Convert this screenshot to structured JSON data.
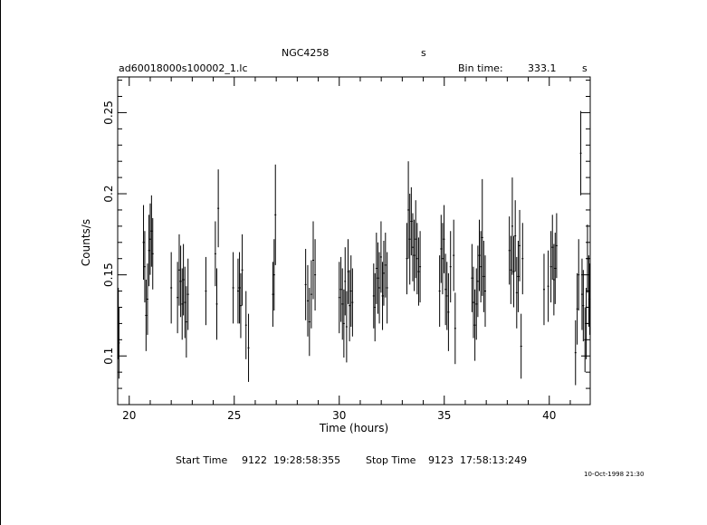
{
  "header": {
    "object": "NGC4258",
    "unit_mark": "s",
    "filename": "ad60018000s100002_1.lc",
    "bin_label": "Bin time:",
    "bin_value": "333.1",
    "bin_unit": "s"
  },
  "footer": {
    "start_label": "Start Time",
    "start_value": "9122  19:28:58:355",
    "stop_label": "Stop Time",
    "stop_value": "9123  17:58:13:249",
    "timestamp": "10-Oct-1998 21:30"
  },
  "chart_data": {
    "type": "scatter",
    "xlabel": "Time (hours)",
    "ylabel": "Counts/s",
    "xlim": [
      19.45,
      41.95
    ],
    "ylim": [
      0.07,
      0.272
    ],
    "xticks": [
      20,
      25,
      30,
      35,
      40
    ],
    "yticks": [
      0.1,
      0.15,
      0.2,
      0.25
    ],
    "ytick_labels": [
      "0.1",
      "0.15",
      "0.2",
      "0.25"
    ],
    "grid": false,
    "error_bars": true,
    "series": [
      {
        "x": [
          19.48,
          19.51,
          20.68,
          20.74,
          20.8,
          20.87,
          20.94,
          21.0,
          21.06,
          21.12,
          22.0,
          22.3,
          22.38,
          22.45,
          22.52,
          22.58,
          22.65,
          22.72,
          22.8,
          23.65,
          24.1,
          24.17,
          24.24,
          24.95,
          25.18,
          25.25,
          25.31,
          25.38,
          25.56,
          25.68,
          26.84,
          26.9,
          26.96,
          28.4,
          28.5,
          28.58,
          28.67,
          28.76,
          28.85,
          30.0,
          30.08,
          30.15,
          30.22,
          30.28,
          30.35,
          30.42,
          30.49,
          30.56,
          30.63,
          31.64,
          31.7,
          31.77,
          31.84,
          31.91,
          31.99,
          32.06,
          32.12,
          32.2,
          32.28,
          33.22,
          33.29,
          33.36,
          33.43,
          33.5,
          33.57,
          33.64,
          33.71,
          33.78,
          33.85,
          34.78,
          34.85,
          34.92,
          34.99,
          35.06,
          35.13,
          35.2,
          35.3,
          35.45,
          35.52,
          36.32,
          36.39,
          36.46,
          36.53,
          36.6,
          36.67,
          36.74,
          36.81,
          36.88,
          36.95,
          38.1,
          38.17,
          38.24,
          38.31,
          38.38,
          38.45,
          38.52,
          38.59,
          38.66,
          38.73,
          39.75,
          39.95,
          40.08,
          40.15,
          40.22,
          40.28,
          40.35,
          41.25,
          41.33,
          41.4,
          41.5,
          41.56,
          41.62,
          41.7,
          41.76,
          41.82,
          41.88,
          41.93
        ],
        "y": [
          0.12,
          0.108,
          0.17,
          0.155,
          0.125,
          0.135,
          0.165,
          0.172,
          0.177,
          0.163,
          0.142,
          0.136,
          0.153,
          0.146,
          0.132,
          0.147,
          0.133,
          0.121,
          0.138,
          0.14,
          0.163,
          0.132,
          0.191,
          0.142,
          0.14,
          0.142,
          0.131,
          0.153,
          0.119,
          0.105,
          0.138,
          0.15,
          0.187,
          0.144,
          0.134,
          0.121,
          0.138,
          0.159,
          0.15,
          0.136,
          0.141,
          0.132,
          0.12,
          0.146,
          0.118,
          0.152,
          0.131,
          0.14,
          0.133,
          0.137,
          0.13,
          0.154,
          0.148,
          0.142,
          0.161,
          0.137,
          0.151,
          0.156,
          0.142,
          0.16,
          0.19,
          0.172,
          0.183,
          0.167,
          0.162,
          0.172,
          0.16,
          0.152,
          0.155,
          0.14,
          0.166,
          0.16,
          0.172,
          0.141,
          0.137,
          0.127,
          0.155,
          0.162,
          0.117,
          0.148,
          0.133,
          0.119,
          0.132,
          0.146,
          0.162,
          0.155,
          0.173,
          0.149,
          0.14,
          0.165,
          0.153,
          0.18,
          0.152,
          0.174,
          0.139,
          0.149,
          0.168,
          0.106,
          0.16,
          0.141,
          0.143,
          0.155,
          0.167,
          0.147,
          0.154,
          0.168,
          0.102,
          0.129,
          0.15,
          0.225,
          0.138,
          0.131,
          0.11,
          0.12,
          0.16,
          0.14,
          0.135
        ],
        "err": [
          0.022,
          0.022,
          0.023,
          0.022,
          0.022,
          0.022,
          0.022,
          0.022,
          0.022,
          0.022,
          0.022,
          0.022,
          0.022,
          0.022,
          0.022,
          0.022,
          0.022,
          0.022,
          0.022,
          0.021,
          0.02,
          0.022,
          0.024,
          0.022,
          0.02,
          0.022,
          0.02,
          0.022,
          0.021,
          0.021,
          0.02,
          0.022,
          0.031,
          0.022,
          0.022,
          0.021,
          0.021,
          0.024,
          0.022,
          0.022,
          0.02,
          0.022,
          0.021,
          0.021,
          0.022,
          0.02,
          0.022,
          0.022,
          0.021,
          0.02,
          0.021,
          0.022,
          0.022,
          0.022,
          0.022,
          0.021,
          0.02,
          0.02,
          0.022,
          0.022,
          0.03,
          0.028,
          0.021,
          0.021,
          0.022,
          0.024,
          0.022,
          0.021,
          0.022,
          0.022,
          0.021,
          0.022,
          0.021,
          0.022,
          0.021,
          0.024,
          0.022,
          0.022,
          0.022,
          0.021,
          0.022,
          0.022,
          0.022,
          0.022,
          0.022,
          0.022,
          0.036,
          0.022,
          0.022,
          0.021,
          0.021,
          0.03,
          0.022,
          0.022,
          0.022,
          0.022,
          0.022,
          0.02,
          0.022,
          0.022,
          0.022,
          0.022,
          0.02,
          0.022,
          0.022,
          0.02,
          0.02,
          0.022,
          0.022,
          0.026,
          0.022,
          0.022,
          0.02,
          0.022,
          0.021,
          0.022,
          0.022
        ]
      }
    ]
  }
}
